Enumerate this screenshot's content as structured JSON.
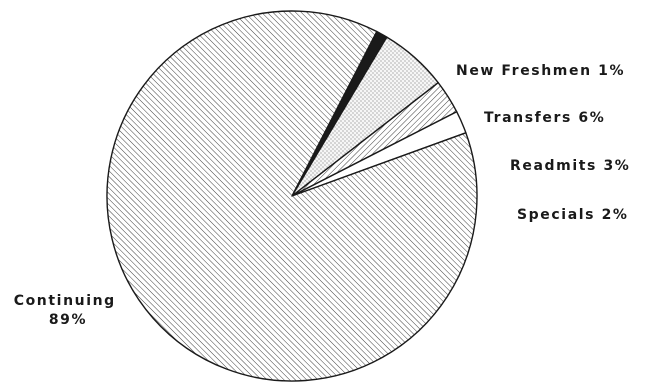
{
  "chart_data": {
    "type": "pie",
    "title": "",
    "slices": [
      {
        "label": "New Freshmen",
        "pct_text": "1%",
        "value": 1,
        "pattern": "solid-black",
        "color": "#1a1a1a"
      },
      {
        "label": "Transfers",
        "pct_text": "6%",
        "value": 6,
        "pattern": "stipple",
        "color": "#e9e9e9"
      },
      {
        "label": "Readmits",
        "pct_text": "3%",
        "value": 3,
        "pattern": "diagonal-hatch",
        "color": "#ffffff"
      },
      {
        "label": "Specials",
        "pct_text": "2%",
        "value": 2,
        "pattern": "none",
        "color": "#ffffff"
      },
      {
        "label": "Continuing",
        "pct_text": "89%",
        "value": 89,
        "pattern": "fine-diagonal-hatch",
        "color": "#ffffff"
      }
    ]
  }
}
